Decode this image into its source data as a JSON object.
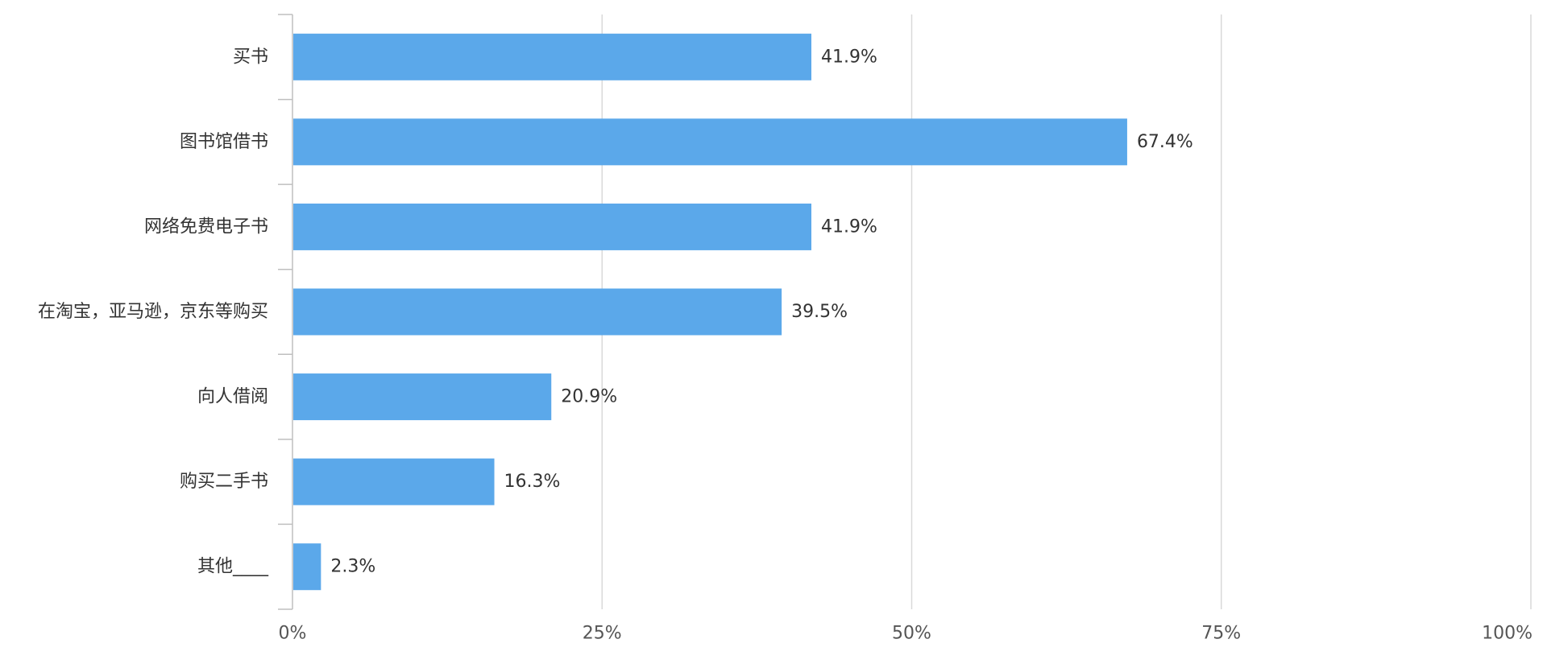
{
  "chart_data": {
    "type": "bar",
    "orientation": "horizontal",
    "categories": [
      "买书",
      "图书馆借书",
      "网络免费电子书",
      "在淘宝，亚马逊，京东等购买",
      "向人借阅",
      "购买二手书",
      "其他____"
    ],
    "values": [
      41.9,
      67.4,
      41.9,
      39.5,
      20.9,
      16.3,
      2.3
    ],
    "data_labels": [
      "41.9%",
      "67.4%",
      "41.9%",
      "39.5%",
      "20.9%",
      "16.3%",
      "2.3%"
    ],
    "x_ticks": [
      0,
      25,
      50,
      75,
      100
    ],
    "x_tick_labels": [
      "0%",
      "25%",
      "50%",
      "75%",
      "100%"
    ],
    "xlim": [
      0,
      100
    ],
    "title": "",
    "xlabel": "",
    "ylabel": "",
    "grid": "vertical",
    "legend": "none",
    "colors": {
      "bar": "#5ba8ea",
      "grid": "#d9d9d9",
      "axis": "#bfbfbf"
    }
  }
}
